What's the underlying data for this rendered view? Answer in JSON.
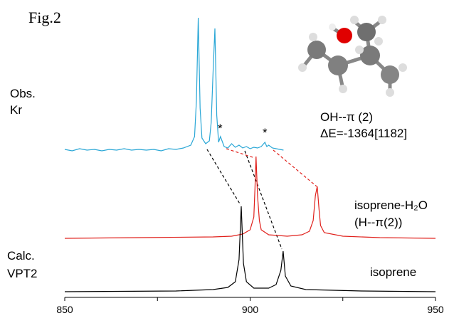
{
  "chart_data": {
    "type": "line",
    "title": "Fig.2",
    "annotations": {
      "obs": [
        "Obs.",
        "Kr"
      ],
      "complex": [
        "OH--π (2)",
        "ΔE=-1364[1182]"
      ],
      "stars": [
        "*",
        "*"
      ],
      "red": [
        "isoprene-H₂O",
        "(H--π(2))"
      ],
      "calc": [
        "Calc.",
        "VPT2"
      ],
      "black": "isoprene"
    },
    "xlim": [
      850,
      950
    ],
    "xticks": [
      850,
      900,
      950
    ],
    "xminor_ticks": [
      875,
      925
    ],
    "series": [
      {
        "color": "#2aa7d6",
        "x": [
          850,
          852,
          854,
          856,
          858,
          860,
          862,
          864,
          866,
          868,
          870,
          872,
          874,
          876,
          878,
          880,
          882,
          884,
          885,
          885.5,
          886,
          886.5,
          887,
          888,
          889,
          889.5,
          890,
          890.5,
          891,
          891.5,
          892,
          893,
          894,
          895,
          896,
          897,
          898,
          899,
          900,
          901,
          902,
          903,
          904,
          904.5,
          905,
          906,
          907,
          908,
          909
        ],
        "values": [
          2,
          0,
          3,
          1,
          2,
          0,
          2,
          1,
          3,
          1,
          2,
          1,
          2,
          0,
          3,
          2,
          4,
          8,
          20,
          70,
          187,
          60,
          18,
          10,
          14,
          40,
          110,
          172,
          50,
          12,
          20,
          6,
          4,
          10,
          5,
          8,
          4,
          6,
          3,
          5,
          4,
          6,
          12,
          6,
          8,
          4,
          3,
          2,
          1
        ]
      },
      {
        "color": "#e0201b",
        "x": [
          850,
          870,
          890,
          895,
          898,
          900,
          901,
          901.3,
          901.6,
          902,
          902.5,
          903,
          905,
          910,
          914,
          916,
          917,
          917.6,
          918.1,
          918.6,
          919,
          920,
          925,
          935,
          950
        ],
        "values": [
          0,
          1,
          2,
          3,
          6,
          12,
          30,
          70,
          115,
          60,
          25,
          12,
          5,
          3,
          5,
          10,
          25,
          60,
          73,
          40,
          18,
          8,
          3,
          1,
          0
        ]
      },
      {
        "color": "#000000",
        "x": [
          850,
          880,
          890,
          894,
          896,
          897,
          897.6,
          898.2,
          899,
          901,
          905,
          907,
          908.3,
          908.9,
          909.5,
          911,
          915,
          930,
          950
        ],
        "values": [
          0,
          1,
          3,
          6,
          14,
          45,
          120,
          40,
          14,
          5,
          5,
          10,
          30,
          57,
          22,
          8,
          3,
          1,
          0
        ]
      }
    ]
  }
}
